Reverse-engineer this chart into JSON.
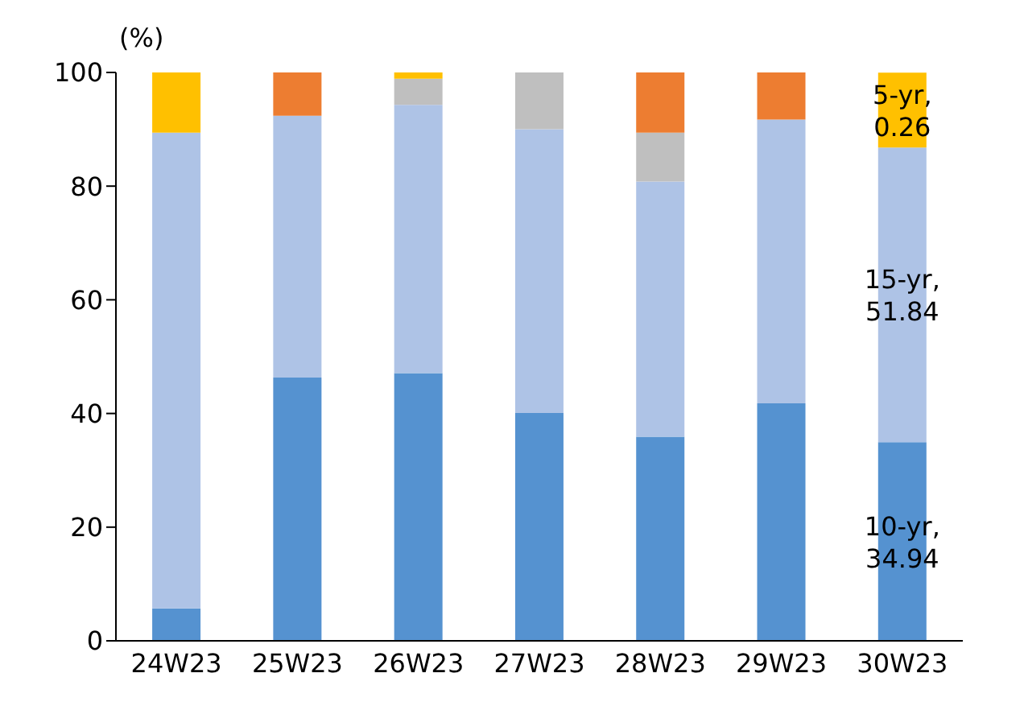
{
  "chart_data": {
    "type": "bar",
    "stacked": true,
    "ylabel": "(%)",
    "categories": [
      "24W23",
      "25W23",
      "26W23",
      "27W23",
      "28W23",
      "29W23",
      "30W23"
    ],
    "series": [
      {
        "color": "#5592d0",
        "values": [
          5.7,
          46.3,
          47.1,
          40.1,
          35.9,
          41.8,
          34.94
        ],
        "value_labels": [
          null,
          null,
          null,
          null,
          null,
          null,
          "10-yr, 34.94"
        ]
      },
      {
        "color": "#aec3e6",
        "values": [
          83.7,
          46.1,
          47.2,
          49.9,
          44.9,
          49.9,
          51.84
        ],
        "value_labels": [
          null,
          null,
          null,
          null,
          null,
          null,
          "15-yr, 51.84"
        ]
      },
      {
        "color": "#bfbfbf",
        "values": [
          0,
          0,
          4.6,
          10,
          8.6,
          0,
          0
        ]
      },
      {
        "color": "#ed7d31",
        "values": [
          0,
          7.6,
          0,
          0,
          10.6,
          8.3,
          0
        ]
      },
      {
        "color": "#ffc000",
        "values": [
          10.6,
          0,
          1.1,
          0,
          0,
          0,
          13.2
        ],
        "value_labels": [
          null,
          null,
          null,
          null,
          null,
          null,
          "5-yr, 0.26"
        ]
      }
    ],
    "ylim": [
      0,
      100
    ],
    "yticks": [
      0,
      20,
      40,
      60,
      80,
      100
    ],
    "grid": false,
    "legend": false
  }
}
